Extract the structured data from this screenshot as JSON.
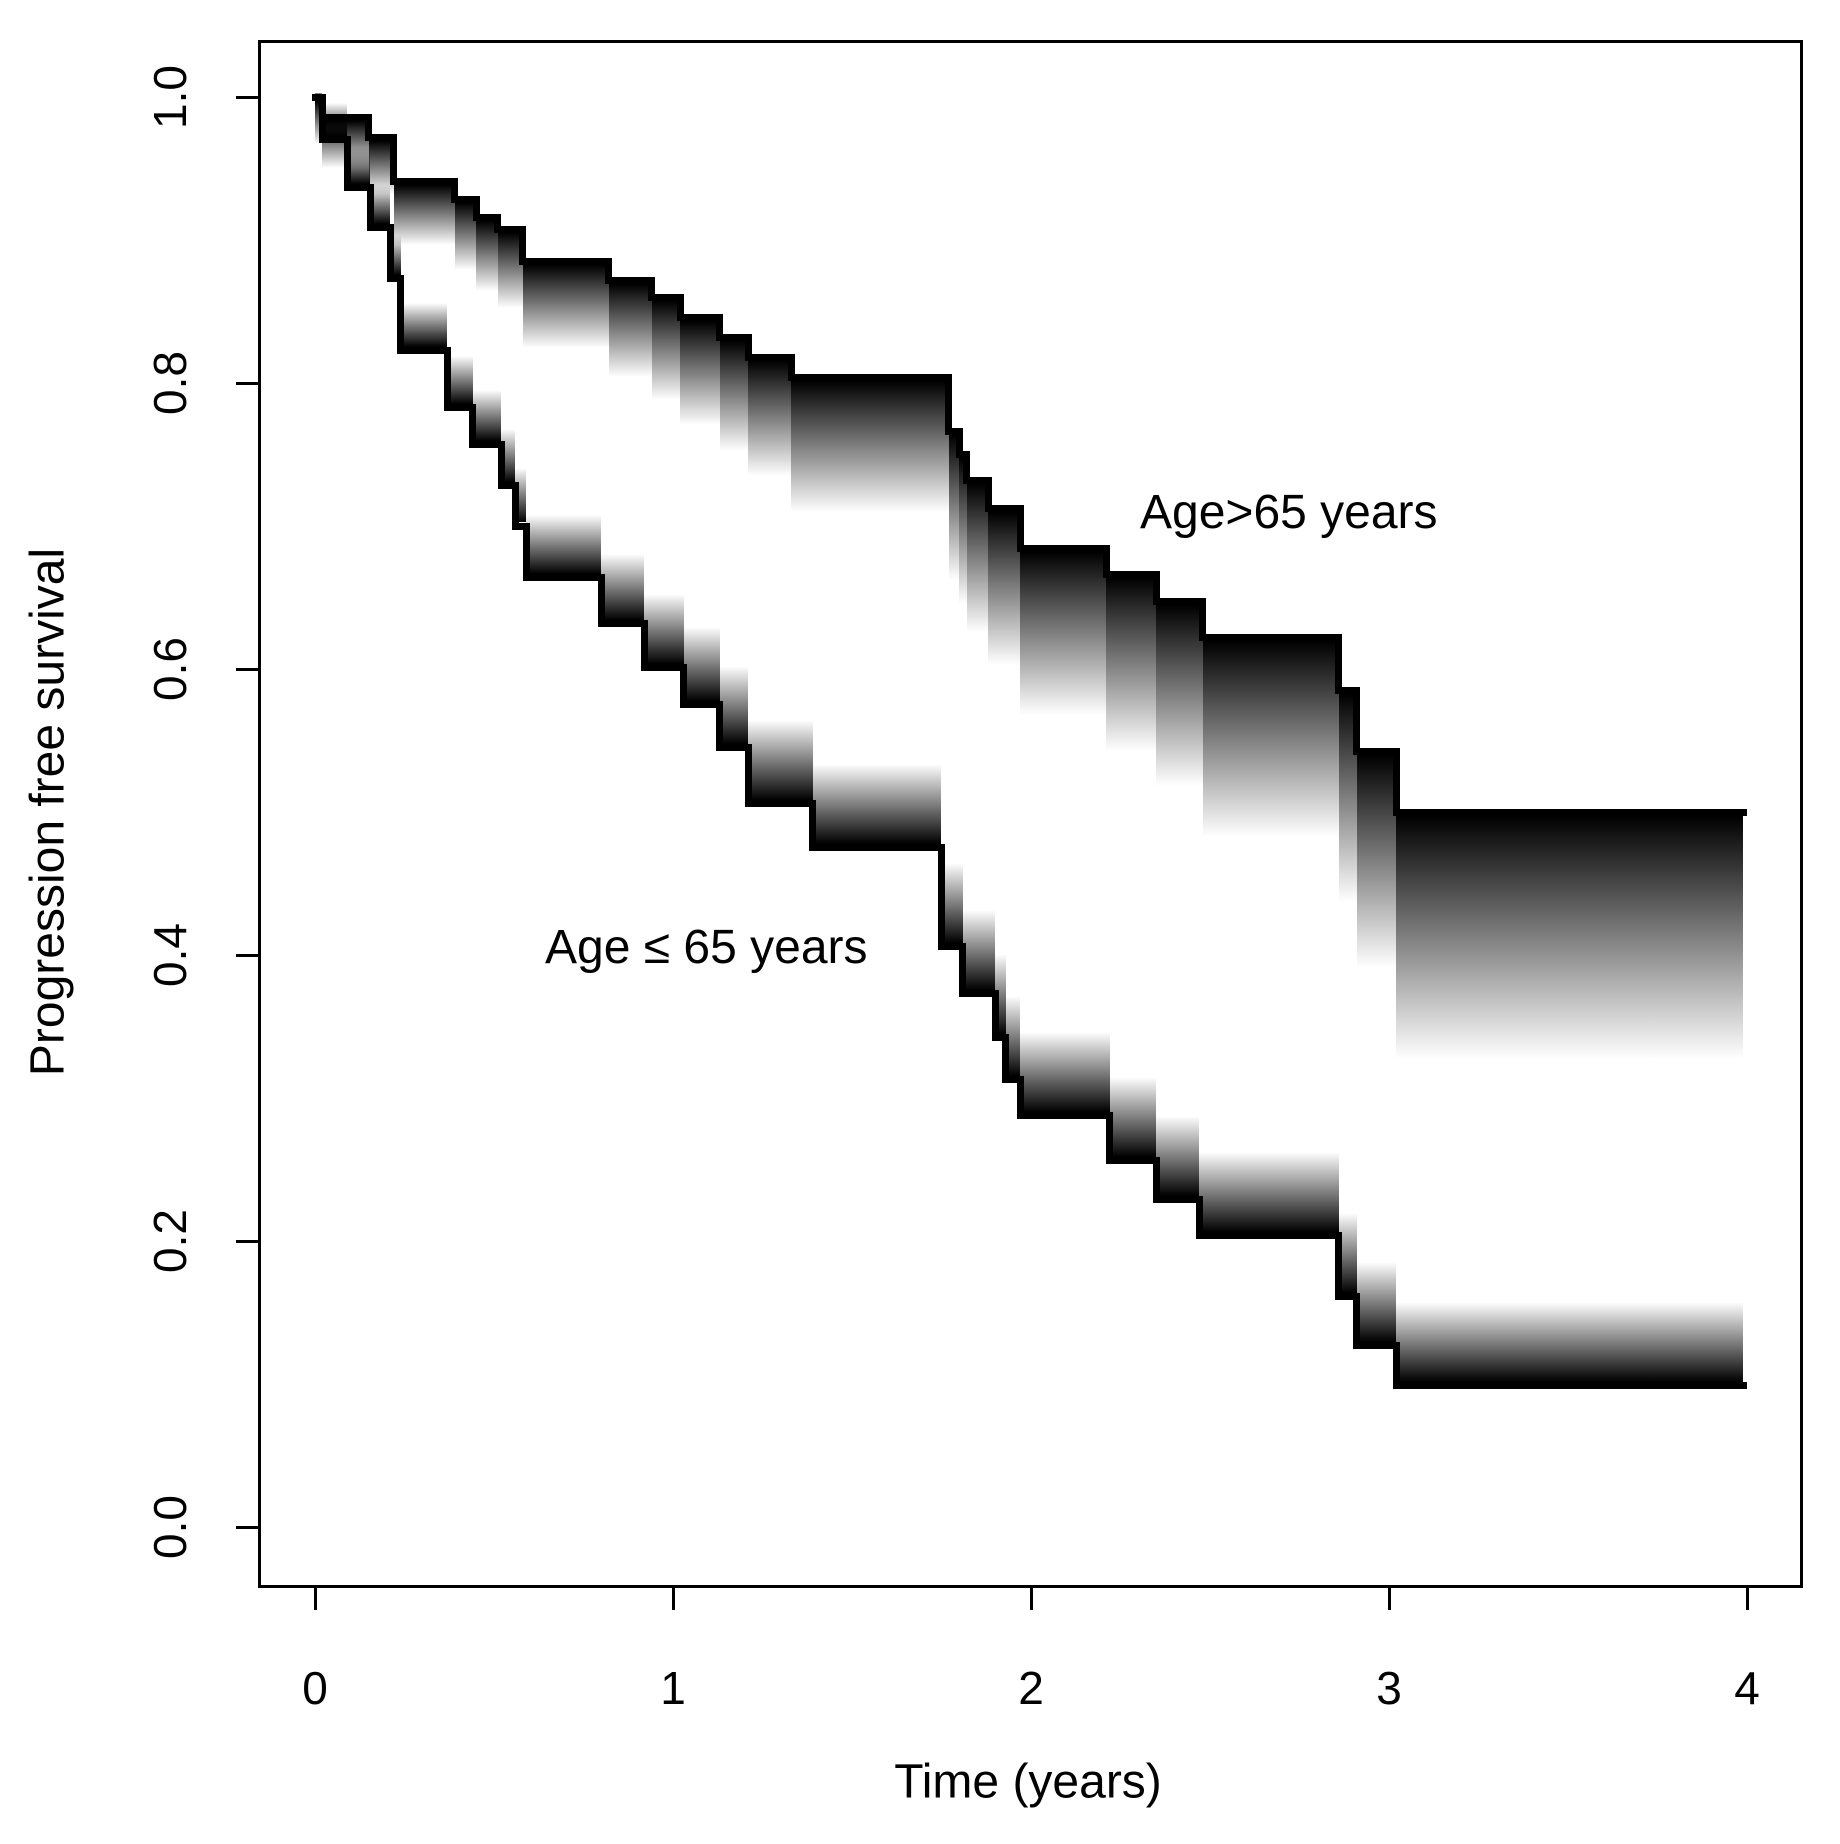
{
  "figure": {
    "background": "#ffffff"
  },
  "axes": {
    "x": {
      "label": "Time (years)",
      "tick_labels": [
        "0",
        "1",
        "2",
        "3",
        "4"
      ],
      "tick_values": [
        0,
        1,
        2,
        3,
        4
      ]
    },
    "y": {
      "label": "Progression free survival",
      "tick_labels": [
        "1.0",
        "0.8",
        "0.6",
        "0.4",
        "0.2",
        "0.0"
      ],
      "tick_values": [
        1.0,
        0.8,
        0.6,
        0.4,
        0.2,
        0.0
      ]
    }
  },
  "annotations": [
    {
      "id": "upper",
      "text": "Age>65 years"
    },
    {
      "id": "lower",
      "text": "Age ≤ 65 years"
    }
  ],
  "colors": {
    "line": "#000000",
    "text": "#000000",
    "background": "#ffffff"
  },
  "chart_data": {
    "type": "line",
    "subtype": "kaplan-meier-step-with-gradient-uncertainty-band",
    "title": "",
    "xlabel": "Time (years)",
    "ylabel": "Progression free survival",
    "xlim": [
      0,
      4
    ],
    "ylim": [
      0,
      1
    ],
    "grid": false,
    "legend_position": "annotated-inline",
    "series": [
      {
        "name": "Age>65 years",
        "color": "#000000",
        "fuzz_direction": "below",
        "band_height_units": {
          "base": 0.03,
          "per_year": 0.04,
          "max": 0.2
        },
        "steps": [
          [
            0.0,
            0.02,
            1.0
          ],
          [
            0.02,
            0.15,
            0.986
          ],
          [
            0.15,
            0.22,
            0.972
          ],
          [
            0.22,
            0.39,
            0.941
          ],
          [
            0.39,
            0.45,
            0.928
          ],
          [
            0.45,
            0.51,
            0.916
          ],
          [
            0.51,
            0.58,
            0.907
          ],
          [
            0.58,
            0.82,
            0.885
          ],
          [
            0.82,
            0.94,
            0.872
          ],
          [
            0.94,
            1.02,
            0.86
          ],
          [
            1.02,
            1.13,
            0.846
          ],
          [
            1.13,
            1.21,
            0.832
          ],
          [
            1.21,
            1.33,
            0.818
          ],
          [
            1.33,
            1.77,
            0.804
          ],
          [
            1.77,
            1.8,
            0.766
          ],
          [
            1.8,
            1.82,
            0.75
          ],
          [
            1.82,
            1.88,
            0.732
          ],
          [
            1.88,
            1.97,
            0.712
          ],
          [
            1.97,
            2.21,
            0.684
          ],
          [
            2.21,
            2.35,
            0.666
          ],
          [
            2.35,
            2.48,
            0.647
          ],
          [
            2.48,
            2.86,
            0.622
          ],
          [
            2.86,
            2.91,
            0.585
          ],
          [
            2.91,
            3.02,
            0.542
          ],
          [
            3.02,
            3.99,
            0.5
          ]
        ]
      },
      {
        "name": "Age ≤ 65 years",
        "color": "#000000",
        "fuzz_direction": "above",
        "band_height_units": {
          "base": 0.022,
          "per_year": 0.028,
          "max": 0.056
        },
        "steps": [
          [
            0.0,
            0.02,
            1.0
          ],
          [
            0.02,
            0.09,
            0.97
          ],
          [
            0.09,
            0.155,
            0.937
          ],
          [
            0.155,
            0.21,
            0.909
          ],
          [
            0.21,
            0.24,
            0.873
          ],
          [
            0.24,
            0.37,
            0.823
          ],
          [
            0.37,
            0.44,
            0.783
          ],
          [
            0.44,
            0.52,
            0.757
          ],
          [
            0.52,
            0.56,
            0.728
          ],
          [
            0.56,
            0.59,
            0.7
          ],
          [
            0.59,
            0.8,
            0.664
          ],
          [
            0.8,
            0.92,
            0.632
          ],
          [
            0.92,
            1.03,
            0.601
          ],
          [
            1.03,
            1.13,
            0.575
          ],
          [
            1.13,
            1.21,
            0.545
          ],
          [
            1.21,
            1.39,
            0.506
          ],
          [
            1.39,
            1.75,
            0.475
          ],
          [
            1.75,
            1.81,
            0.406
          ],
          [
            1.81,
            1.9,
            0.373
          ],
          [
            1.9,
            1.93,
            0.342
          ],
          [
            1.93,
            1.97,
            0.313
          ],
          [
            1.97,
            2.22,
            0.288
          ],
          [
            2.22,
            2.35,
            0.256
          ],
          [
            2.35,
            2.47,
            0.229
          ],
          [
            2.47,
            2.86,
            0.204
          ],
          [
            2.86,
            2.91,
            0.161
          ],
          [
            2.91,
            3.02,
            0.127
          ],
          [
            3.02,
            3.99,
            0.099
          ]
        ]
      }
    ]
  }
}
